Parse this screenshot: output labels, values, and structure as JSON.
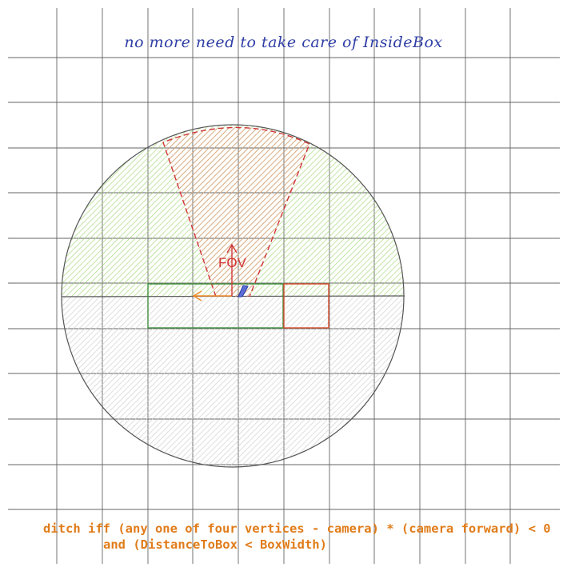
{
  "title": "no more need to take care of InsideBox",
  "fov_label": "FOV",
  "notes": {
    "line1": "ditch iff (any one of four vertices - camera) * (camera forward) < 0",
    "line2": "and (DistanceToBox < BoxWidth)"
  },
  "colors": {
    "grid": "#4a4a4a",
    "title": "#2f3fa6",
    "fov": "#d03535",
    "visible_half": "#a5d97a",
    "hidden_half": "#c8c8c8",
    "current_box": "#3f8f3f",
    "neighbor_box": "#d64a2a",
    "camera_axis_left": "#f08a2a",
    "camera_axis_up": "#d03535",
    "camera_axis_fwd": "#2f3fa6",
    "note": "#e07c1a"
  }
}
